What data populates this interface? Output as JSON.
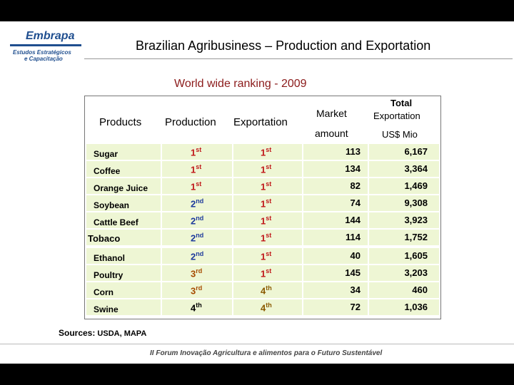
{
  "header": {
    "logo_word": "Embrapa",
    "logo_sub1": "Estudos Estratégicos",
    "logo_sub2": "e Capacitação",
    "title": "Brazilian Agribusiness – Production and Exportation"
  },
  "subtitle": "World wide ranking - 2009",
  "table": {
    "col_products": "Products",
    "col_production": "Production",
    "col_exportation": "Exportation",
    "col_market_1": "Market",
    "col_market_2": "amount",
    "col_total_1": "Total",
    "col_total_2": "Exportation",
    "col_total_3": "US$ Mio",
    "rows": [
      {
        "product": "Sugar",
        "production": "1",
        "production_sup": "st",
        "exportation": "1",
        "exportation_sup": "st",
        "market": "113",
        "total": "6,167"
      },
      {
        "product": "Coffee",
        "production": "1",
        "production_sup": "st",
        "exportation": "1",
        "exportation_sup": "st",
        "market": "134",
        "total": "3,364"
      },
      {
        "product": "Orange Juice",
        "production": "1",
        "production_sup": "st",
        "exportation": "1",
        "exportation_sup": "st",
        "market": "82",
        "total": "1,469"
      },
      {
        "product": "Soybean",
        "production": "2",
        "production_sup": "nd",
        "exportation": "1",
        "exportation_sup": "st",
        "market": "74",
        "total": "9,308"
      },
      {
        "product": "Cattle Beef",
        "production": "2",
        "production_sup": "nd",
        "exportation": "1",
        "exportation_sup": "st",
        "market": "144",
        "total": "3,923"
      },
      {
        "product": "Tobaco",
        "production": "2",
        "production_sup": "nd",
        "exportation": "1",
        "exportation_sup": "st",
        "market": "114",
        "total": "1,752"
      },
      {
        "product": "Ethanol",
        "production": "2",
        "production_sup": "nd",
        "exportation": "1",
        "exportation_sup": "st",
        "market": "40",
        "total": "1,605"
      },
      {
        "product": "Poultry",
        "production": "3",
        "production_sup": "rd",
        "exportation": "1",
        "exportation_sup": "st",
        "market": "145",
        "total": "3,203"
      },
      {
        "product": "Corn",
        "production": "3",
        "production_sup": "rd",
        "exportation": "4",
        "exportation_sup": "th",
        "market": "34",
        "total": "460"
      },
      {
        "product": "Swine",
        "production": "4",
        "production_sup": "th",
        "exportation": "4",
        "exportation_sup": "th",
        "market": "72",
        "total": "1,036"
      }
    ]
  },
  "sources": {
    "label": "Sources:",
    "value": "USDA,  MAPA"
  },
  "footer": "II Forum Inovação Agricultura e alimentos para o Futuro Sustentável",
  "colors": {
    "rank_1": "#c0181a",
    "rank_2": "#1e3b9c",
    "rank_3": "#a64b00",
    "rank_4": "#000000",
    "cell_bg": "#eef6d4",
    "subtitle": "#8b1a1a"
  }
}
